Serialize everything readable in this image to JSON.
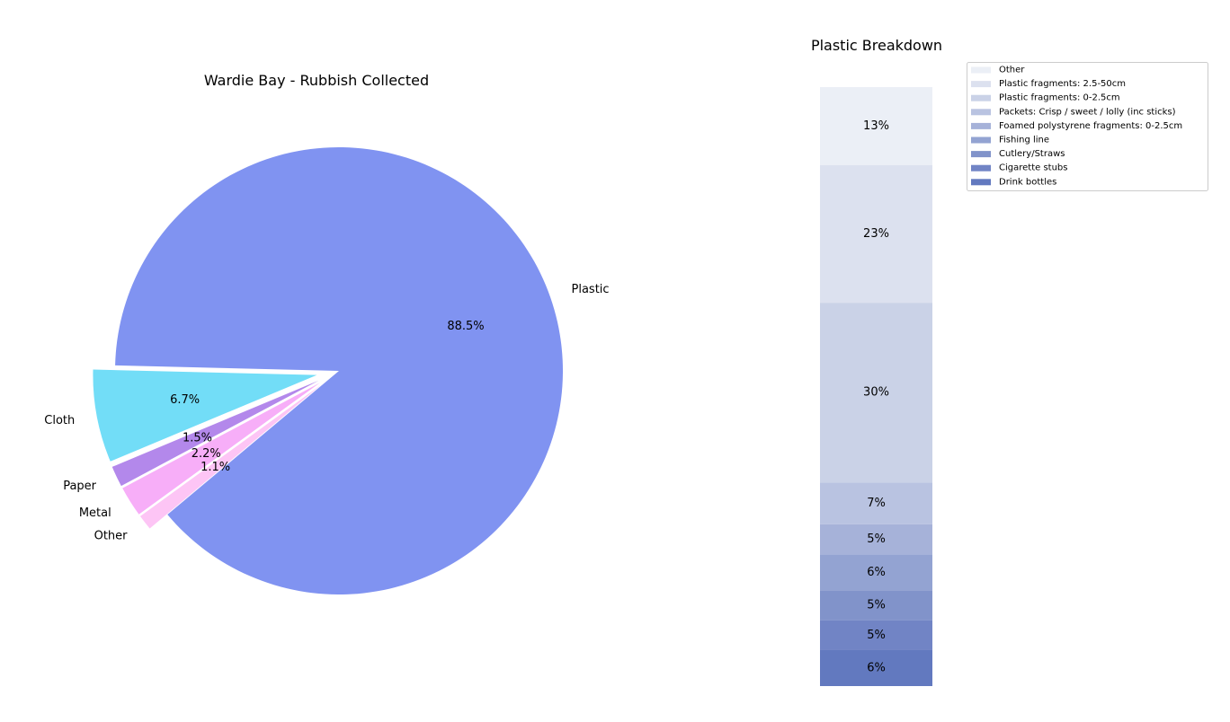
{
  "colors": {
    "pie": {
      "Plastic": "#8093f1",
      "Cloth": "#72ddf7",
      "Paper": "#b388eb",
      "Metal": "#f7aef8",
      "Other": "#fdc5f5"
    },
    "stack": [
      "#6279bf",
      "#7184c5",
      "#8193ca",
      "#93a3d2",
      "#a6b2d9",
      "#b9c3e1",
      "#cad2e7",
      "#dce1ef",
      "#ebeff6"
    ]
  },
  "chart_data": [
    {
      "type": "pie",
      "title": "Wardie Bay - Rubbish Collected",
      "slices": [
        {
          "label": "Plastic",
          "value": 88.5,
          "pct_label": "88.5%",
          "explode": false
        },
        {
          "label": "Cloth",
          "value": 6.7,
          "pct_label": "6.7%",
          "explode": true
        },
        {
          "label": "Paper",
          "value": 1.5,
          "pct_label": "1.5%",
          "explode": true
        },
        {
          "label": "Metal",
          "value": 2.2,
          "pct_label": "2.2%",
          "explode": true
        },
        {
          "label": "Other",
          "value": 1.1,
          "pct_label": "1.1%",
          "explode": true
        }
      ]
    },
    {
      "type": "bar",
      "stacked": true,
      "title": "Plastic Breakdown",
      "legend_position": "upper-right",
      "segments": [
        {
          "name": "Drink bottles",
          "value": 6,
          "label": "6%"
        },
        {
          "name": "Cigarette stubs",
          "value": 5,
          "label": "5%"
        },
        {
          "name": "Cutlery/Straws",
          "value": 5,
          "label": "5%"
        },
        {
          "name": "Fishing line",
          "value": 6,
          "label": "6%"
        },
        {
          "name": "Foamed polystyrene fragments: 0-2.5cm",
          "value": 5,
          "label": "5%"
        },
        {
          "name": "Packets: Crisp / sweet / lolly (inc sticks)",
          "value": 7,
          "label": "7%"
        },
        {
          "name": "Plastic fragments: 0-2.5cm",
          "value": 30,
          "label": "30%"
        },
        {
          "name": "Plastic fragments: 2.5-50cm",
          "value": 23,
          "label": "23%"
        },
        {
          "name": "Other",
          "value": 13,
          "label": "13%"
        }
      ]
    }
  ]
}
